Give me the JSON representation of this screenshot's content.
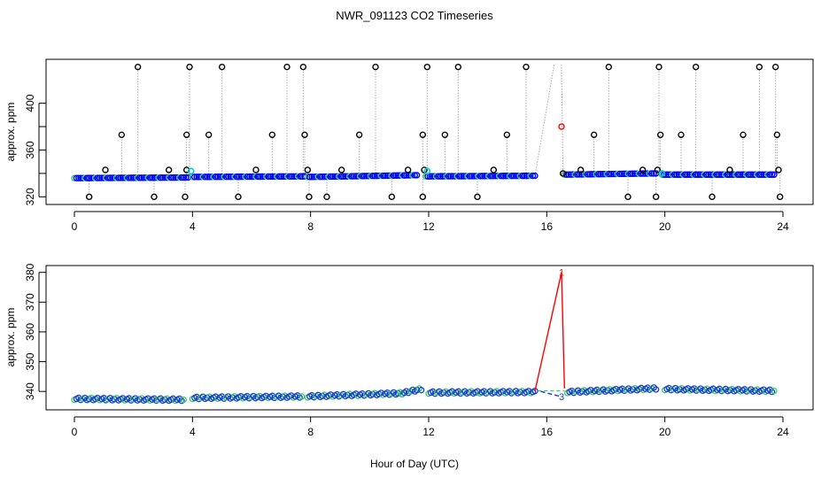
{
  "chart_data": [
    {
      "type": "scatter",
      "title": "NWR_091123  CO2 Timeseries",
      "xlabel": "",
      "ylabel": "approx. ppm",
      "xlim": [
        0,
        24
      ],
      "ylim": [
        318,
        433
      ],
      "xticks": [
        0,
        4,
        8,
        12,
        16,
        20,
        24
      ],
      "yticks": [
        320,
        360,
        400
      ],
      "ytick_labels": [
        "320",
        "360",
        "400"
      ],
      "series": [
        {
          "name": "co2 (blue)",
          "segments": [
            {
              "x_start": 0.0,
              "x_end": 3.85,
              "y_start": 336,
              "y_end": 336.5
            },
            {
              "x_start": 4.0,
              "x_end": 7.8,
              "y_start": 337,
              "y_end": 337.5
            },
            {
              "x_start": 7.9,
              "x_end": 11.6,
              "y_start": 337,
              "y_end": 338.5
            },
            {
              "x_start": 11.9,
              "x_end": 15.6,
              "y_start": 337.5,
              "y_end": 338
            },
            {
              "x_start": 16.6,
              "x_end": 19.7,
              "y_start": 339,
              "y_end": 340
            },
            {
              "x_start": 19.9,
              "x_end": 23.7,
              "y_start": 339,
              "y_end": 339
            }
          ]
        },
        {
          "name": "high spikes (black)",
          "x": [
            2.15,
            3.9,
            5.0,
            7.2,
            7.75,
            10.2,
            11.95,
            13.0,
            15.3,
            18.1,
            19.8,
            21.05,
            23.2,
            23.75
          ],
          "y": [
            431,
            431,
            431,
            431,
            431,
            431,
            431,
            431,
            431,
            431,
            431,
            431,
            431,
            431
          ]
        },
        {
          "name": "mid spikes (black)",
          "x": [
            1.6,
            3.8,
            4.55,
            6.7,
            7.8,
            9.65,
            11.8,
            12.55,
            14.65,
            17.6,
            19.85,
            20.55,
            22.65,
            23.8
          ],
          "y": [
            373,
            373,
            373,
            373,
            373,
            373,
            373,
            373,
            373,
            373,
            373,
            373,
            373,
            373
          ]
        },
        {
          "name": "low spikes (black)",
          "x": [
            1.05,
            3.2,
            3.8,
            6.15,
            7.9,
            9.05,
            11.3,
            11.85,
            14.2,
            16.55,
            17.15,
            19.25,
            19.75,
            22.2,
            23.85
          ],
          "y": [
            343,
            343,
            343,
            343,
            343,
            343,
            343,
            343,
            343,
            340,
            343,
            343,
            343,
            343,
            343
          ]
        },
        {
          "name": "drop spikes (black)",
          "x": [
            0.5,
            2.7,
            3.75,
            5.55,
            7.95,
            8.55,
            10.75,
            11.8,
            13.65,
            18.75,
            19.7,
            21.6,
            23.9
          ],
          "y": [
            320,
            320,
            320,
            320,
            320,
            320,
            320,
            320,
            320,
            320,
            320,
            320,
            320
          ]
        },
        {
          "name": "flagged (red)",
          "x": [
            16.5
          ],
          "y": [
            380
          ]
        },
        {
          "name": "cyan markers",
          "x": [
            3.95,
            11.95,
            19.9
          ],
          "y": [
            342,
            342,
            340
          ]
        }
      ]
    },
    {
      "type": "line",
      "title": "",
      "xlabel": "Hour of Day (UTC)",
      "ylabel": "approx. ppm",
      "xlim": [
        0,
        24
      ],
      "ylim": [
        335,
        380.5
      ],
      "xticks": [
        0,
        4,
        8,
        12,
        16,
        20,
        24
      ],
      "yticks": [
        340,
        350,
        360,
        370,
        380
      ],
      "ytick_labels": [
        "340",
        "350",
        "360",
        "370",
        "380"
      ],
      "series": [
        {
          "name": "co2 (blue)",
          "segments": [
            {
              "x_start": 0.0,
              "x_end": 3.7,
              "y_start": 337.5,
              "y_end": 337.2
            },
            {
              "x_start": 4.0,
              "x_end": 7.7,
              "y_start": 337.8,
              "y_end": 338.3
            },
            {
              "x_start": 7.9,
              "x_end": 11.1,
              "y_start": 338.3,
              "y_end": 339.4
            },
            {
              "x_start": 11.1,
              "x_end": 11.75,
              "y_start": 339.4,
              "y_end": 340.8
            },
            {
              "x_start": 12.0,
              "x_end": 15.6,
              "y_start": 339.6,
              "y_end": 339.8
            },
            {
              "x_start": 16.7,
              "x_end": 19.7,
              "y_start": 339.8,
              "y_end": 341.0
            },
            {
              "x_start": 20.0,
              "x_end": 23.7,
              "y_start": 340.8,
              "y_end": 340.2
            }
          ]
        },
        {
          "name": "flag 1 (red)",
          "x": [
            15.6,
            16.5,
            16.6
          ],
          "y": [
            340.1,
            380,
            341
          ],
          "label": "1"
        },
        {
          "name": "flag 3 (blue dashed)",
          "x": [
            15.8,
            16.5
          ],
          "y": [
            340.0,
            338.2
          ],
          "label": "3"
        }
      ]
    }
  ]
}
